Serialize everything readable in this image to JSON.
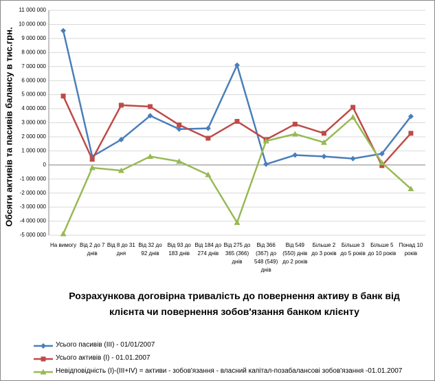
{
  "chart_data": {
    "type": "line",
    "y_label": "Обсяги активів та пасивів балансу в тис.грн.",
    "x_label": "Розрахункова договірна тривалість до повернення активу в банк від клієнта чи повернення зобов'язання банком клієнту",
    "categories": [
      "На вимогу",
      "Від 2 до 7 днів",
      "Від 8 до 31 дня",
      "Від 32 до 92 днів",
      "Від 93 до 183 днів",
      "Від 184 до 274 днів",
      "Від 275 до 365 (366) днів",
      "Від 366 (367) до 548 (549) днів",
      "Від 549 (550) днів до 2 років",
      "Більше 2 до 3 років",
      "Більше 3 до 5 років",
      "Більше 5 до 10 років",
      "Понад 10 років"
    ],
    "series": [
      {
        "name": "Усього пасивів (III)  - 01/01/2007",
        "color": "#4a7ebb",
        "marker": "diamond",
        "values": [
          9550000,
          600000,
          1800000,
          3500000,
          2550000,
          2600000,
          7100000,
          50000,
          700000,
          600000,
          450000,
          800000,
          3450000
        ]
      },
      {
        "name": "Усього активів (І)  - 01.01.2007",
        "color": "#be4b48",
        "marker": "square",
        "values": [
          4900000,
          400000,
          4250000,
          4150000,
          2850000,
          1900000,
          3100000,
          1800000,
          2900000,
          2250000,
          4100000,
          -50000,
          2250000
        ]
      },
      {
        "name": "Невідповідність (І)-(ІІІ+ІV) = активи - зобов'язання - власний капітал-позабалансові зобов'язання -01.01.2007",
        "color": "#98b954",
        "marker": "triangle",
        "values": [
          -4900000,
          -200000,
          -400000,
          600000,
          250000,
          -700000,
          -4100000,
          1700000,
          2200000,
          1600000,
          3400000,
          150000,
          -1700000
        ]
      }
    ],
    "ylim": [
      -5000000,
      11000000
    ],
    "yticks": [
      {
        "value": -5000000,
        "label": "-5 000 000"
      },
      {
        "value": -4000000,
        "label": "-4 000 000"
      },
      {
        "value": -3000000,
        "label": "-3 000 000"
      },
      {
        "value": -2000000,
        "label": "-2 000 000"
      },
      {
        "value": -1000000,
        "label": "-1 000 000"
      },
      0,
      {
        "value": 1000000,
        "label": "1 000 000"
      },
      {
        "value": 2000000,
        "label": "2 000 000"
      },
      {
        "value": 3000000,
        "label": "3 000 000"
      },
      {
        "value": 4000000,
        "label": "4 000 000"
      },
      {
        "value": 5000000,
        "label": "5 000 000"
      },
      {
        "value": 6000000,
        "label": "6 000 000"
      },
      {
        "value": 7000000,
        "label": "7 000 000"
      },
      {
        "value": 8000000,
        "label": "8 000 000"
      },
      {
        "value": 9000000,
        "label": "9 000 000"
      },
      {
        "value": 10000000,
        "label": "10 000 000"
      },
      {
        "value": 11000000,
        "label": "11 000 000"
      }
    ],
    "grid": true
  }
}
